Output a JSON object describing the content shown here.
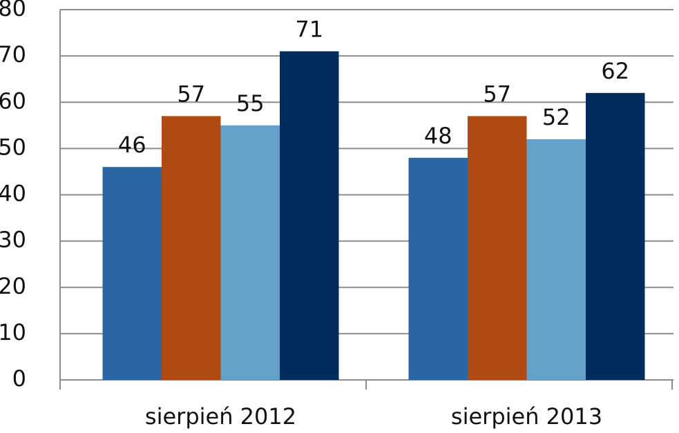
{
  "chart_data": {
    "type": "bar",
    "categories": [
      "sierpień 2012",
      "sierpień 2013"
    ],
    "series": [
      {
        "color": "#2966a3",
        "values": [
          46,
          48
        ]
      },
      {
        "color": "#b04a12",
        "values": [
          57,
          57
        ]
      },
      {
        "color": "#64a0c8",
        "values": [
          55,
          52
        ]
      },
      {
        "color": "#002d5e",
        "values": [
          71,
          62
        ]
      }
    ],
    "ylim": [
      0,
      80
    ],
    "yticks": [
      0,
      10,
      20,
      30,
      40,
      50,
      60,
      70,
      80
    ],
    "grid": true
  }
}
